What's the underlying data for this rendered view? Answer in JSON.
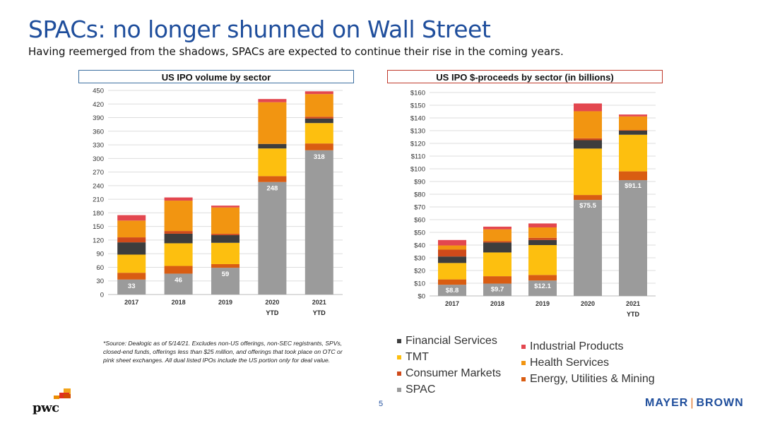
{
  "header": {
    "title": "SPACs: no longer shunned on Wall Street",
    "subtitle": "Having reemerged from the shadows, SPACs are expected to continue their rise in the coming years."
  },
  "colors": {
    "SPAC": "#9b9b9b",
    "Energy, Utilities & Mining": "#d95d12",
    "TMT": "#fdbf0f",
    "Financial Services": "#3d3d3d",
    "Consumer Markets": "#cf4a1a",
    "Health Services": "#f29511",
    "Industrial Products": "#e3474f"
  },
  "chart_data": [
    {
      "type": "bar",
      "stacked": true,
      "title": "US IPO volume by sector",
      "categories": [
        "2017",
        "2018",
        "2019",
        "2020",
        "2021"
      ],
      "category_sublabels": [
        "",
        "",
        "",
        "YTD",
        "YTD"
      ],
      "ylim": [
        0,
        450
      ],
      "yticks": [
        0,
        30,
        60,
        90,
        120,
        150,
        180,
        210,
        240,
        270,
        300,
        330,
        360,
        390,
        420,
        450
      ],
      "ytick_prefix": "",
      "grid": true,
      "series": [
        {
          "name": "SPAC",
          "values": [
            33,
            46,
            59,
            248,
            318
          ],
          "data_labels": [
            "33",
            "46",
            "59",
            "248",
            "318"
          ]
        },
        {
          "name": "Energy, Utilities & Mining",
          "values": [
            15,
            17,
            8,
            13,
            15
          ]
        },
        {
          "name": "TMT",
          "values": [
            40,
            50,
            47,
            61,
            45
          ]
        },
        {
          "name": "Financial Services",
          "values": [
            27,
            21,
            17,
            10,
            10
          ]
        },
        {
          "name": "Consumer Markets",
          "values": [
            11,
            6,
            3,
            0,
            4
          ]
        },
        {
          "name": "Health Services",
          "values": [
            37,
            67,
            58,
            92,
            50
          ]
        },
        {
          "name": "Industrial Products",
          "values": [
            12,
            7,
            4,
            7,
            6
          ]
        }
      ]
    },
    {
      "type": "bar",
      "stacked": true,
      "title": "US IPO $-proceeds by sector (in billions)",
      "categories": [
        "2017",
        "2018",
        "2019",
        "2020",
        "2021"
      ],
      "category_sublabels": [
        "",
        "",
        "",
        "",
        "YTD"
      ],
      "ylim": [
        0,
        160
      ],
      "yticks": [
        0,
        10,
        20,
        30,
        40,
        50,
        60,
        70,
        80,
        90,
        100,
        110,
        120,
        130,
        140,
        150,
        160
      ],
      "ytick_prefix": "$",
      "grid": true,
      "series": [
        {
          "name": "SPAC",
          "values": [
            8.8,
            9.7,
            12.1,
            75.5,
            91.1
          ],
          "data_labels": [
            "$8.8",
            "$9.7",
            "$12.1",
            "$75.5",
            "$91.1"
          ]
        },
        {
          "name": "Energy, Utilities & Mining",
          "values": [
            4.2,
            5.8,
            4.4,
            3.9,
            6.9
          ]
        },
        {
          "name": "TMT",
          "values": [
            12.9,
            18.7,
            23.5,
            36.5,
            28.8
          ]
        },
        {
          "name": "Financial Services",
          "values": [
            5.1,
            7.8,
            4.0,
            6.6,
            3.2
          ]
        },
        {
          "name": "Consumer Markets",
          "values": [
            5.4,
            1.1,
            1.7,
            1.5,
            0.5
          ]
        },
        {
          "name": "Health Services",
          "values": [
            3.3,
            9.3,
            8.2,
            21.3,
            10.7
          ]
        },
        {
          "name": "Industrial Products",
          "values": [
            4.3,
            2.1,
            3.1,
            6.1,
            1.5
          ]
        }
      ]
    }
  ],
  "legend": {
    "items": [
      {
        "name": "Financial Services"
      },
      {
        "name": "TMT"
      },
      {
        "name": "Consumer Markets"
      },
      {
        "name": "SPAC"
      },
      {
        "name": "Industrial Products"
      },
      {
        "name": "Health Services"
      },
      {
        "name": "Energy, Utilities & Mining"
      }
    ]
  },
  "footer": {
    "source_note": "*Source:  Dealogic as of 5/14/21. Excludes non-US offerings, non-SEC registrants, SPVs, closed-end funds, offerings less than $25 million, and offerings that took place on OTC or pink sheet exchanges. All dual listed IPOs include the US portion only for deal value.",
    "page_number": "5",
    "left_logo": "pwc",
    "right_logo_left": "MAYER",
    "right_logo_right": "BROWN"
  }
}
